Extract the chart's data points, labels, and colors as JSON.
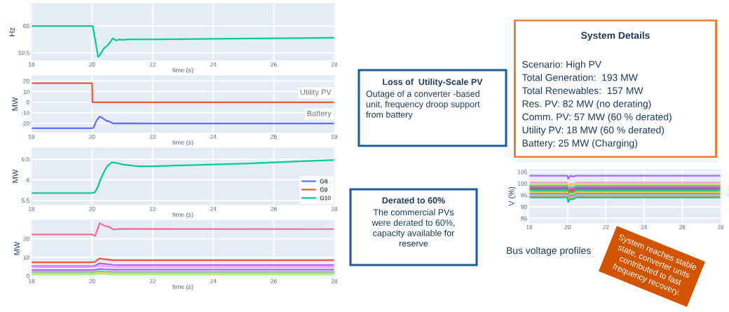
{
  "chart_data": [
    {
      "type": "line",
      "xlabel": "time (s)",
      "ylabel": "Hz",
      "xlim": [
        18,
        28
      ],
      "ylim": [
        59.36,
        60.42
      ],
      "xticks": [
        18,
        20,
        22,
        24,
        26,
        28
      ],
      "yticks": [
        59.5,
        60
      ],
      "grid": true,
      "series": [
        {
          "color": "#00cc96",
          "x": [
            18,
            20.02,
            20.1,
            20.2,
            20.3,
            20.4,
            20.5,
            20.6,
            20.68,
            20.8,
            20.9,
            21,
            21.2,
            22,
            24,
            26,
            28
          ],
          "values": [
            60,
            60,
            59.75,
            59.42,
            59.5,
            59.59,
            59.63,
            59.7,
            59.77,
            59.73,
            59.75,
            59.74,
            59.75,
            59.75,
            59.76,
            59.77,
            59.78
          ]
        }
      ]
    },
    {
      "type": "line",
      "xlabel": "time (s)",
      "ylabel": "MW",
      "xlim": [
        18,
        28
      ],
      "ylim": [
        -28.5,
        25
      ],
      "xticks": [
        18,
        20,
        22,
        24,
        26,
        28
      ],
      "yticks": [
        -20,
        -10,
        0,
        10,
        20
      ],
      "grid": true,
      "annotations": [
        "Loss of  Utility-Scale PV",
        "Outage of a converter -based\nunit, frequency droop support\nfrom battery"
      ],
      "series": [
        {
          "name": "Utility PV",
          "color": "#ef553b",
          "x": [
            18,
            20,
            20.01,
            28
          ],
          "values": [
            18,
            18,
            0,
            0
          ]
        },
        {
          "name": "Battery",
          "color": "#636efa",
          "x": [
            18,
            20,
            20.05,
            20.15,
            20.25,
            20.35,
            20.45,
            20.55,
            20.7,
            20.9,
            22,
            28
          ],
          "values": [
            -24.5,
            -24.5,
            -24,
            -17,
            -13.5,
            -15,
            -17,
            -18,
            -20,
            -19.8,
            -20,
            -20
          ]
        }
      ]
    },
    {
      "type": "line",
      "xlabel": "time (s)",
      "ylabel": "MW",
      "xlim": [
        18,
        28
      ],
      "ylim": [
        5.4,
        6.77
      ],
      "xticks": [
        18,
        20,
        22,
        24,
        26,
        28
      ],
      "yticks": [
        5.5,
        6,
        6.5
      ],
      "grid": true,
      "legend": "bottom right",
      "series": [
        {
          "name": "G8",
          "color": "#636efa"
        },
        {
          "name": "G9",
          "color": "#ef553b"
        },
        {
          "name": "G10",
          "color": "#00cc96",
          "x": [
            18,
            20,
            20.1,
            20.2,
            20.3,
            20.4,
            20.5,
            20.65,
            20.8,
            21,
            21.5,
            22,
            23,
            24,
            25,
            26,
            27,
            28
          ],
          "values": [
            5.68,
            5.68,
            5.7,
            5.85,
            6.05,
            6.2,
            6.33,
            6.42,
            6.41,
            6.37,
            6.33,
            6.33,
            6.35,
            6.37,
            6.39,
            6.42,
            6.45,
            6.48
          ]
        }
      ]
    },
    {
      "type": "line",
      "xlabel": "time (s)",
      "ylabel": "MW",
      "xlim": [
        18,
        28
      ],
      "ylim": [
        -0.5,
        30
      ],
      "xticks": [
        18,
        20,
        22,
        24,
        26,
        28
      ],
      "yticks": [
        0,
        10,
        20
      ],
      "grid": true,
      "annotations": [
        "Derated to 60%",
        "The commercial PVs\nwere derated to 60%,\ncapacity available for\nreserve"
      ],
      "series": [
        {
          "color": "#ff6692",
          "x": [
            18,
            20,
            20.1,
            20.25,
            20.4,
            20.55,
            20.7,
            20.9,
            28
          ],
          "values": [
            22.3,
            22.3,
            21.5,
            28.4,
            27,
            26.5,
            25,
            25.3,
            25.2
          ]
        },
        {
          "color": "#ef553b",
          "x": [
            18,
            20,
            20.1,
            20.25,
            20.4,
            20.55,
            20.7,
            20.9,
            28
          ],
          "values": [
            7.4,
            7.4,
            7.6,
            9.5,
            9,
            8.8,
            8.5,
            8.5,
            8.5
          ]
        },
        {
          "color": "#ab63fa",
          "x": [
            18,
            20,
            20.1,
            20.25,
            20.4,
            20.55,
            20.7,
            20.9,
            28
          ],
          "values": [
            5.3,
            5.3,
            5.6,
            6.8,
            6.5,
            6.2,
            6,
            5.9,
            5.9
          ]
        },
        {
          "color": "#ff97ff",
          "x": [
            18,
            20,
            20.1,
            20.25,
            20.4,
            20.55,
            20.7,
            20.9,
            28
          ],
          "values": [
            4.8,
            4.8,
            5,
            5.6,
            5.3,
            5.1,
            5,
            4.9,
            4.9
          ]
        },
        {
          "color": "#ab63fa",
          "x": [
            18,
            20,
            20.1,
            20.25,
            20.4,
            20.55,
            20.7,
            20.9,
            28
          ],
          "values": [
            3.2,
            3.2,
            3.3,
            3.8,
            3.6,
            3.5,
            3.4,
            3.4,
            3.4
          ]
        },
        {
          "color": "#19d3f3",
          "x": [
            18,
            20,
            20.1,
            20.25,
            20.4,
            20.55,
            20.7,
            20.9,
            28
          ],
          "values": [
            2.1,
            2.1,
            2.2,
            2.5,
            2.3,
            2.2,
            2.1,
            2.1,
            2.1
          ]
        },
        {
          "color": "#fecb52",
          "x": [
            18,
            20,
            20.1,
            20.25,
            20.4,
            20.55,
            20.7,
            20.9,
            28
          ],
          "values": [
            1.5,
            1.5,
            1.6,
            1.9,
            1.7,
            1.6,
            1.5,
            1.5,
            1.5
          ]
        },
        {
          "color": "#b6e880",
          "x": [
            18,
            20,
            20.1,
            20.25,
            20.4,
            20.55,
            20.7,
            20.9,
            28
          ],
          "values": [
            0.9,
            0.9,
            1,
            1.2,
            1.1,
            1,
            0.9,
            0.9,
            0.9
          ]
        }
      ]
    },
    {
      "type": "line",
      "ylabel": "V (%)",
      "xlim": [
        18,
        28
      ],
      "ylim": [
        83,
        106
      ],
      "xticks": [
        18,
        20,
        22,
        24,
        26,
        28
      ],
      "yticks": [
        85,
        90,
        95,
        100,
        105
      ],
      "grid": true,
      "annotations": [
        "Bus voltage profiles",
        "System reaches stable\nstate, converter units\ncontributed to fast\nfrequency recovery."
      ],
      "series": [
        {
          "color": "#ab63fa",
          "x": [
            18,
            20,
            20.03,
            20.15,
            20.3,
            20.45,
            28
          ],
          "values": [
            103.4,
            103.4,
            102,
            103.4,
            103,
            103.4,
            103.4
          ]
        },
        {
          "color": "#ff97ff",
          "x": [
            18,
            20,
            20.03,
            20.15,
            20.3,
            20.45,
            28
          ],
          "values": [
            100.5,
            100.5,
            98.5,
            99.9,
            99.7,
            100.5,
            100.5
          ]
        },
        {
          "color": "#fecb52",
          "x": [
            18,
            20,
            20.03,
            20.15,
            20.3,
            20.45,
            28
          ],
          "values": [
            100,
            100,
            98,
            99.4,
            99.2,
            100,
            100
          ]
        },
        {
          "color": "#b6e880",
          "x": [
            18,
            20,
            20.03,
            20.15,
            20.3,
            20.45,
            28
          ],
          "values": [
            99.5,
            99.5,
            97.5,
            98.9,
            98.7,
            99.5,
            99.5
          ]
        },
        {
          "color": "#19d3f3",
          "x": [
            18,
            20,
            20.03,
            20.15,
            20.3,
            20.45,
            28
          ],
          "values": [
            99,
            99,
            97,
            98.4,
            98.2,
            99,
            99
          ]
        },
        {
          "color": "#ff6692",
          "x": [
            18,
            20,
            20.03,
            20.15,
            20.3,
            20.45,
            28
          ],
          "values": [
            98.5,
            98.5,
            96.5,
            97.9,
            97.7,
            98.5,
            98.5
          ]
        },
        {
          "color": "#636efa",
          "x": [
            18,
            20,
            20.03,
            20.15,
            20.3,
            20.45,
            28
          ],
          "values": [
            98,
            98,
            96,
            97.4,
            97.2,
            98,
            98
          ]
        },
        {
          "color": "#ef553b",
          "x": [
            18,
            20,
            20.03,
            20.15,
            20.3,
            20.45,
            28
          ],
          "values": [
            97.5,
            97.5,
            95.5,
            96.9,
            96.7,
            97.5,
            97.5
          ]
        },
        {
          "color": "#00cc96",
          "x": [
            18,
            20,
            20.03,
            20.15,
            20.3,
            20.45,
            28
          ],
          "values": [
            97,
            97,
            95,
            96.4,
            96.2,
            97,
            97
          ]
        },
        {
          "color": "#ffa15a",
          "x": [
            18,
            20,
            20.03,
            20.15,
            20.3,
            20.45,
            28
          ],
          "values": [
            96.5,
            96.5,
            94.5,
            95.9,
            95.7,
            96.5,
            96.5
          ]
        },
        {
          "color": "#fecb52",
          "x": [
            18,
            20,
            20.03,
            20.15,
            20.3,
            20.45,
            28
          ],
          "values": [
            96,
            96,
            94,
            95.4,
            95.2,
            96,
            96
          ]
        },
        {
          "color": "#00cc96",
          "x": [
            18,
            20,
            20.03,
            20.15,
            20.3,
            20.45,
            28
          ],
          "values": [
            95.5,
            95.5,
            93.5,
            94.9,
            94.7,
            95.5,
            95.5
          ]
        },
        {
          "color": "#ff97ff",
          "x": [
            18,
            20,
            20.03,
            20.15,
            20.3,
            20.45,
            28
          ],
          "values": [
            95,
            95,
            93,
            94.4,
            94.2,
            95,
            95
          ]
        },
        {
          "color": "#ffa15a",
          "x": [
            18,
            20,
            20.03,
            20.15,
            20.3,
            20.45,
            28
          ],
          "values": [
            94.5,
            94.5,
            92.5,
            93.9,
            93.7,
            94.5,
            94.5
          ]
        },
        {
          "color": "#00cc96",
          "x": [
            18,
            20,
            20.03,
            20.15,
            20.3,
            20.45,
            28
          ],
          "values": [
            94,
            94,
            92,
            93.4,
            93.2,
            94,
            94
          ]
        }
      ]
    },
    {
      "type": "other",
      "title": "System Details",
      "annotations": [
        "Scenario: High PV",
        "Total Generation:  193 MW",
        "Total Renewables:  157 MW",
        "Res. PV: 82 MW (no derating)",
        "Comm. PV: 57 MW (60 % derated)",
        "Utility PV: 18 MW (60 % derated)",
        "Battery: 25 MW (Charging)"
      ]
    }
  ]
}
